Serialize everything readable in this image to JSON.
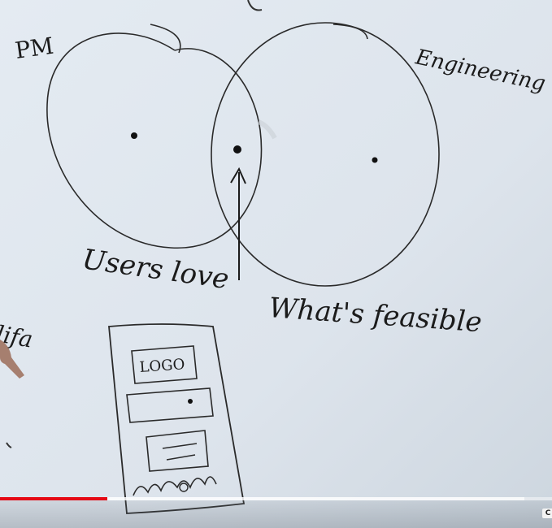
{
  "whiteboard": {
    "label_pm": "PM",
    "label_engineering": "Engineering",
    "label_users_love": "Users love",
    "label_whats_feasible": "What's feasible",
    "label_left_partial": "lifa",
    "wireframe_logo": "LOGO"
  },
  "player": {
    "progress_fraction": 0.195,
    "buffer_fraction": 0.95,
    "cc_label": "C",
    "accent_color": "#e50914"
  }
}
